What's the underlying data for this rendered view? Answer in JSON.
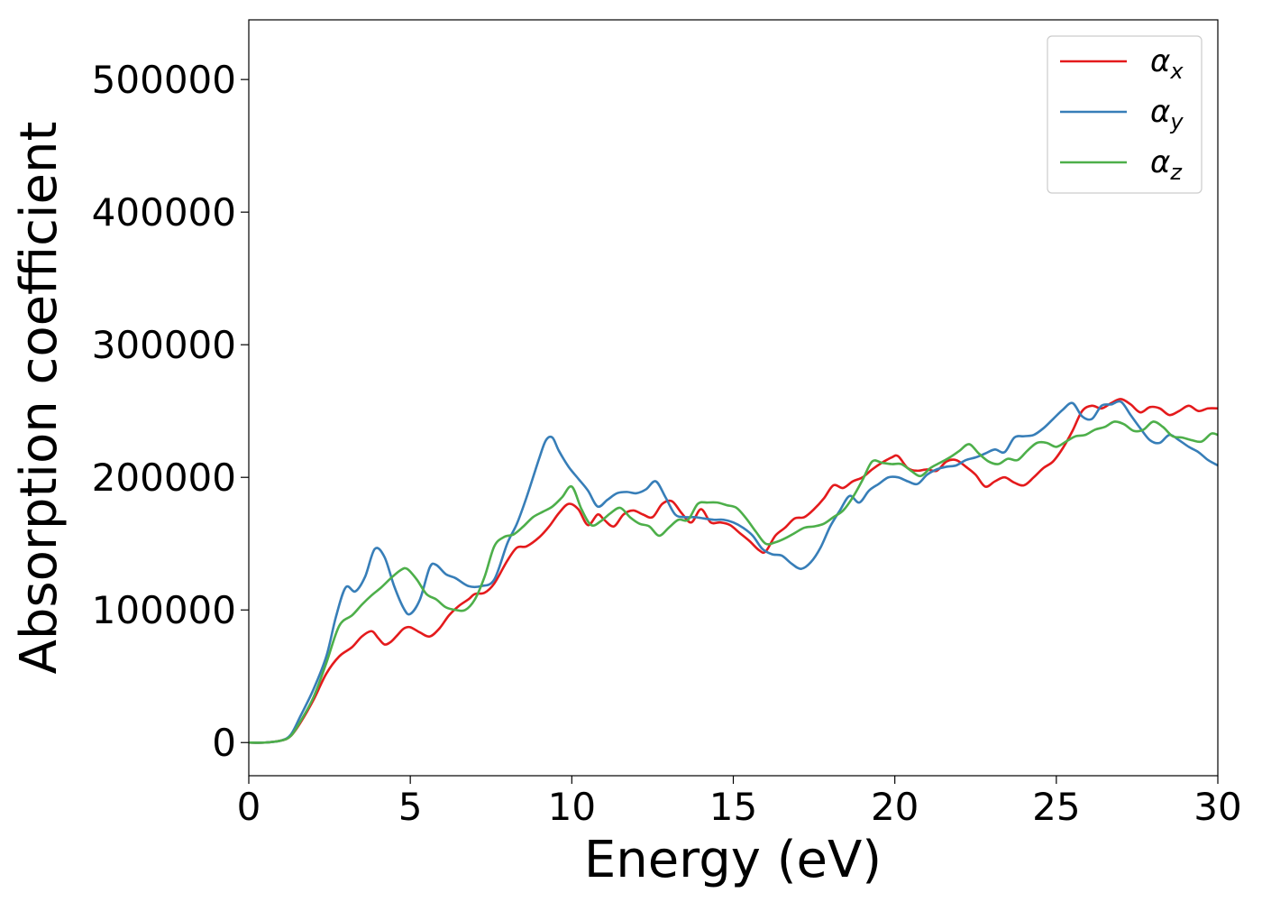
{
  "chart_data": {
    "type": "line",
    "xlabel": "Energy (eV)",
    "ylabel": "Absorption coefficient",
    "xlim": [
      0,
      30
    ],
    "ylim": [
      -25000,
      545000
    ],
    "xticks": [
      0,
      5,
      10,
      15,
      20,
      25,
      30
    ],
    "xtick_labels": [
      "0",
      "5",
      "10",
      "15",
      "20",
      "25",
      "30"
    ],
    "yticks": [
      0,
      100000,
      200000,
      300000,
      400000,
      500000
    ],
    "ytick_labels": [
      "0",
      "100000",
      "200000",
      "300000",
      "400000",
      "500000"
    ],
    "grid": false,
    "legend_position": "top-right",
    "series": [
      {
        "name": "αx",
        "symbol": "α",
        "subscript": "x",
        "color": "#e41a1c",
        "x": [
          0,
          0.5,
          1.0,
          1.3,
          1.6,
          2.0,
          2.4,
          2.8,
          3.2,
          3.5,
          3.8,
          4.0,
          4.2,
          4.4,
          4.6,
          4.8,
          5.0,
          5.3,
          5.6,
          5.9,
          6.2,
          6.5,
          6.8,
          7.0,
          7.3,
          7.6,
          8.0,
          8.3,
          8.6,
          9.0,
          9.3,
          9.6,
          9.9,
          10.2,
          10.5,
          10.8,
          11.0,
          11.3,
          11.6,
          11.9,
          12.2,
          12.5,
          12.8,
          13.1,
          13.4,
          13.7,
          14.0,
          14.3,
          14.6,
          14.9,
          15.2,
          15.5,
          15.8,
          16.0,
          16.3,
          16.6,
          16.9,
          17.2,
          17.5,
          17.8,
          18.1,
          18.4,
          18.7,
          19.0,
          19.3,
          19.6,
          19.9,
          20.1,
          20.4,
          20.7,
          21.0,
          21.3,
          21.6,
          21.9,
          22.2,
          22.5,
          22.8,
          23.1,
          23.4,
          23.7,
          24.0,
          24.3,
          24.6,
          24.9,
          25.2,
          25.5,
          25.8,
          26.1,
          26.4,
          26.7,
          27.0,
          27.3,
          27.6,
          27.9,
          28.2,
          28.5,
          28.8,
          29.1,
          29.4,
          29.7,
          30.0
        ],
        "y": [
          0,
          0,
          1500,
          5000,
          15000,
          32000,
          52000,
          65000,
          72000,
          80000,
          84000,
          79000,
          74000,
          76000,
          81000,
          86000,
          87000,
          83000,
          80000,
          86000,
          96000,
          103000,
          108000,
          112000,
          113000,
          120000,
          137000,
          147000,
          148000,
          155000,
          163000,
          173000,
          180000,
          176000,
          164000,
          172000,
          168000,
          163000,
          172000,
          175000,
          172000,
          170000,
          180000,
          182000,
          173000,
          166000,
          176000,
          166000,
          166000,
          164000,
          158000,
          152000,
          145000,
          144000,
          156000,
          162000,
          169000,
          170000,
          176000,
          184000,
          194000,
          192000,
          197000,
          200000,
          206000,
          211000,
          215000,
          216000,
          207000,
          205000,
          206000,
          205000,
          212000,
          213000,
          208000,
          202000,
          193000,
          197000,
          200000,
          196000,
          194000,
          200000,
          207000,
          212000,
          222000,
          235000,
          250000,
          254000,
          252000,
          256000,
          259000,
          255000,
          249000,
          253000,
          252000,
          247000,
          250000,
          254000,
          250000,
          252000,
          252000
        ]
      },
      {
        "name": "αy",
        "symbol": "α",
        "subscript": "y",
        "color": "#377eb8",
        "x": [
          0,
          0.5,
          1.0,
          1.3,
          1.6,
          2.0,
          2.4,
          2.7,
          3.0,
          3.3,
          3.6,
          3.9,
          4.2,
          4.5,
          4.8,
          5.0,
          5.3,
          5.6,
          5.8,
          6.1,
          6.4,
          6.8,
          7.2,
          7.6,
          8.0,
          8.3,
          8.6,
          9.0,
          9.2,
          9.4,
          9.6,
          9.9,
          10.2,
          10.5,
          10.8,
          11.1,
          11.4,
          11.7,
          12.0,
          12.3,
          12.6,
          12.9,
          13.2,
          13.5,
          13.8,
          14.1,
          14.4,
          14.7,
          15.0,
          15.3,
          15.6,
          15.9,
          16.2,
          16.5,
          16.8,
          17.1,
          17.4,
          17.7,
          18.0,
          18.3,
          18.6,
          18.9,
          19.2,
          19.5,
          19.8,
          20.1,
          20.4,
          20.7,
          21.0,
          21.3,
          21.6,
          21.9,
          22.2,
          22.5,
          22.8,
          23.1,
          23.4,
          23.7,
          24.0,
          24.3,
          24.6,
          24.9,
          25.2,
          25.5,
          25.8,
          26.1,
          26.4,
          26.7,
          27.0,
          27.3,
          27.6,
          27.9,
          28.2,
          28.5,
          28.8,
          29.1,
          29.4,
          29.7,
          30.0
        ],
        "y": [
          0,
          0,
          1500,
          6000,
          20000,
          40000,
          65000,
          95000,
          117000,
          114000,
          125000,
          146000,
          140000,
          118000,
          101000,
          97000,
          108000,
          132000,
          134000,
          127000,
          124000,
          118000,
          118000,
          123000,
          150000,
          165000,
          185000,
          215000,
          228000,
          230000,
          220000,
          208000,
          199000,
          190000,
          178000,
          183000,
          188000,
          189000,
          188000,
          191000,
          197000,
          185000,
          172000,
          170000,
          170000,
          169000,
          168000,
          168000,
          166000,
          162000,
          156000,
          146000,
          142000,
          141000,
          135000,
          131000,
          136000,
          147000,
          163000,
          175000,
          186000,
          181000,
          190000,
          195000,
          200000,
          200000,
          197000,
          195000,
          202000,
          206000,
          208000,
          209000,
          213000,
          215000,
          218000,
          221000,
          219000,
          230000,
          231000,
          232000,
          237000,
          244000,
          251000,
          256000,
          246000,
          244000,
          254000,
          255000,
          257000,
          247000,
          237000,
          228000,
          226000,
          232000,
          228000,
          223000,
          219000,
          213000,
          209000
        ]
      },
      {
        "name": "αz",
        "symbol": "α",
        "subscript": "z",
        "color": "#4daf4a",
        "x": [
          0,
          0.5,
          1.0,
          1.3,
          1.6,
          2.0,
          2.4,
          2.8,
          3.2,
          3.5,
          3.8,
          4.1,
          4.4,
          4.7,
          4.9,
          5.2,
          5.5,
          5.8,
          6.1,
          6.4,
          6.7,
          7.0,
          7.3,
          7.6,
          7.9,
          8.2,
          8.5,
          8.8,
          9.1,
          9.4,
          9.7,
          10.0,
          10.3,
          10.6,
          10.9,
          11.2,
          11.5,
          11.8,
          12.1,
          12.4,
          12.7,
          13.0,
          13.3,
          13.6,
          13.9,
          14.2,
          14.5,
          14.8,
          15.1,
          15.4,
          15.7,
          16.0,
          16.3,
          16.6,
          16.9,
          17.2,
          17.5,
          17.8,
          18.1,
          18.4,
          18.7,
          19.0,
          19.3,
          19.6,
          19.9,
          20.2,
          20.5,
          20.8,
          21.1,
          21.4,
          21.7,
          22.0,
          22.3,
          22.6,
          22.9,
          23.2,
          23.5,
          23.8,
          24.1,
          24.4,
          24.7,
          25.0,
          25.3,
          25.6,
          25.9,
          26.2,
          26.5,
          26.8,
          27.1,
          27.4,
          27.7,
          28.0,
          28.3,
          28.6,
          28.9,
          29.2,
          29.5,
          29.8,
          30.0
        ],
        "y": [
          0,
          0,
          1500,
          5000,
          16000,
          34000,
          60000,
          88000,
          96000,
          104000,
          111000,
          117000,
          124000,
          130000,
          131000,
          123000,
          112000,
          108000,
          102000,
          100000,
          100000,
          108000,
          125000,
          148000,
          155000,
          157000,
          163000,
          170000,
          174000,
          178000,
          185000,
          193000,
          176000,
          164000,
          167000,
          173000,
          177000,
          170000,
          165000,
          163000,
          156000,
          162000,
          168000,
          168000,
          180000,
          181000,
          181000,
          179000,
          177000,
          169000,
          159000,
          150000,
          151000,
          154000,
          158000,
          162000,
          163000,
          165000,
          170000,
          175000,
          185000,
          198000,
          212000,
          211000,
          210000,
          210000,
          205000,
          201000,
          207000,
          211000,
          215000,
          220000,
          225000,
          218000,
          212000,
          210000,
          214000,
          213000,
          220000,
          226000,
          226000,
          223000,
          227000,
          231000,
          232000,
          236000,
          238000,
          242000,
          240000,
          235000,
          236000,
          242000,
          238000,
          231000,
          230000,
          228000,
          227000,
          233000,
          232000
        ]
      }
    ]
  }
}
